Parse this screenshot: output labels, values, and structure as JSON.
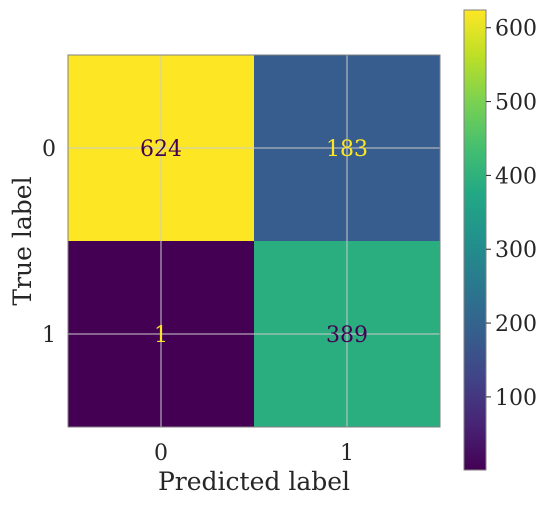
{
  "chart_data": {
    "type": "heatmap",
    "title": "",
    "xlabel": "Predicted label",
    "ylabel": "True label",
    "x_categories": [
      "0",
      "1"
    ],
    "y_categories": [
      "0",
      "1"
    ],
    "values": [
      [
        624,
        183
      ],
      [
        1,
        389
      ]
    ],
    "colormap": "viridis",
    "colorbar": {
      "range": [
        1,
        624
      ],
      "ticks": [
        100,
        200,
        300,
        400,
        500,
        600
      ]
    },
    "grid": true,
    "colors": {
      "text_on_dark": "#fde725",
      "text_on_light": "#440154",
      "grid": "#cccccc",
      "frame": "#808080"
    }
  }
}
